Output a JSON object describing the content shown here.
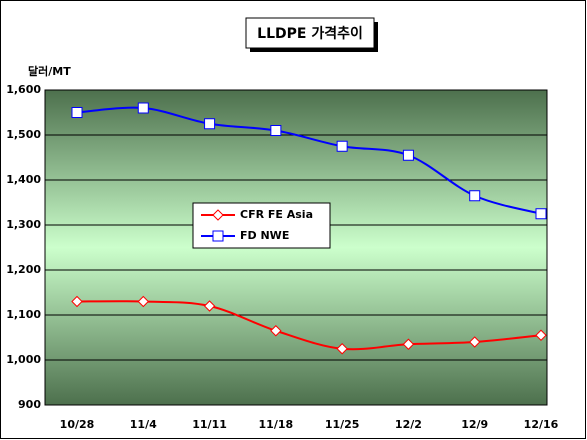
{
  "chart_data": {
    "type": "line",
    "title": "LLDPE 가격추이",
    "y_label": "달러/MT",
    "categories": [
      "10/28",
      "11/4",
      "11/11",
      "11/18",
      "11/25",
      "12/2",
      "12/9",
      "12/16"
    ],
    "series": [
      {
        "name": "CFR FE Asia",
        "color": "#ff0000",
        "values": [
          1130,
          1130,
          1120,
          1065,
          1025,
          1035,
          1040,
          1055
        ]
      },
      {
        "name": "FD NWE",
        "color": "#0000ff",
        "values": [
          1550,
          1560,
          1525,
          1510,
          1475,
          1455,
          1365,
          1325
        ]
      }
    ],
    "ylim": [
      900,
      1600
    ],
    "yticks": [
      900,
      {
        "value": 1000,
        "label": "1,000"
      },
      {
        "value": 1100,
        "label": "1,100"
      },
      {
        "value": 1200,
        "label": "1,200"
      },
      {
        "value": 1300,
        "label": "1,300"
      },
      {
        "value": 1400,
        "label": "1,400"
      },
      {
        "value": 1500,
        "label": "1,500"
      },
      {
        "value": 1600,
        "label": "1,600"
      }
    ],
    "grid": true
  }
}
